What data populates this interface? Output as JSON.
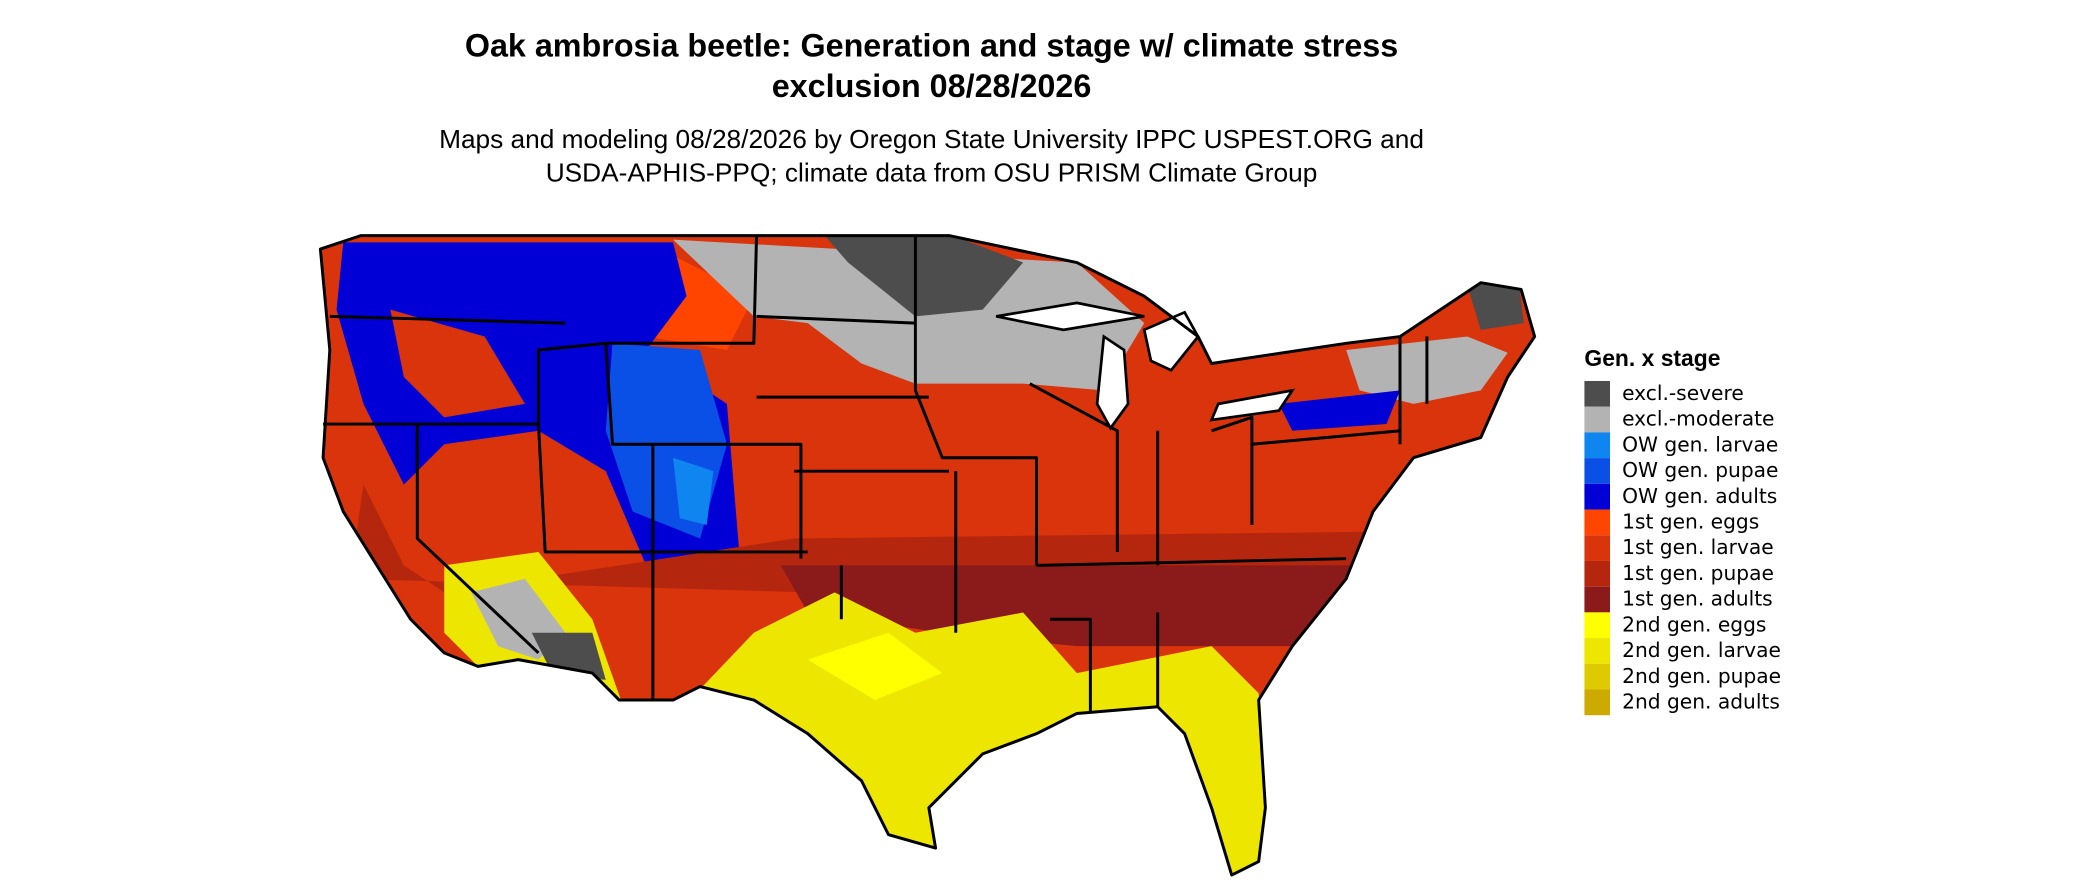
{
  "title": "Oak ambrosia beetle: Generation and stage w/ climate stress exclusion 08/28/2026",
  "subtitle": "Maps and modeling 08/28/2026 by Oregon State University IPPC USPEST.ORG and USDA-APHIS-PPQ; climate data from OSU PRISM Climate Group",
  "legend": {
    "title": "Gen. x stage",
    "items": [
      {
        "label": "excl.-severe",
        "color": "#4d4d4d"
      },
      {
        "label": "excl.-moderate",
        "color": "#b3b3b3"
      },
      {
        "label": "OW gen. larvae",
        "color": "#0f85f0"
      },
      {
        "label": "OW gen. pupae",
        "color": "#0a4fe6"
      },
      {
        "label": "OW gen. adults",
        "color": "#0000d6"
      },
      {
        "label": "1st gen. eggs",
        "color": "#ff4500"
      },
      {
        "label": "1st gen. larvae",
        "color": "#d9340c"
      },
      {
        "label": "1st gen. pupae",
        "color": "#b5260f"
      },
      {
        "label": "1st gen. adults",
        "color": "#8b1a1a"
      },
      {
        "label": "2nd gen. eggs",
        "color": "#ffff00"
      },
      {
        "label": "2nd gen. larvae",
        "color": "#ede600"
      },
      {
        "label": "2nd gen. pupae",
        "color": "#ddcb00"
      },
      {
        "label": "2nd gen. adults",
        "color": "#ccaa00"
      }
    ]
  }
}
